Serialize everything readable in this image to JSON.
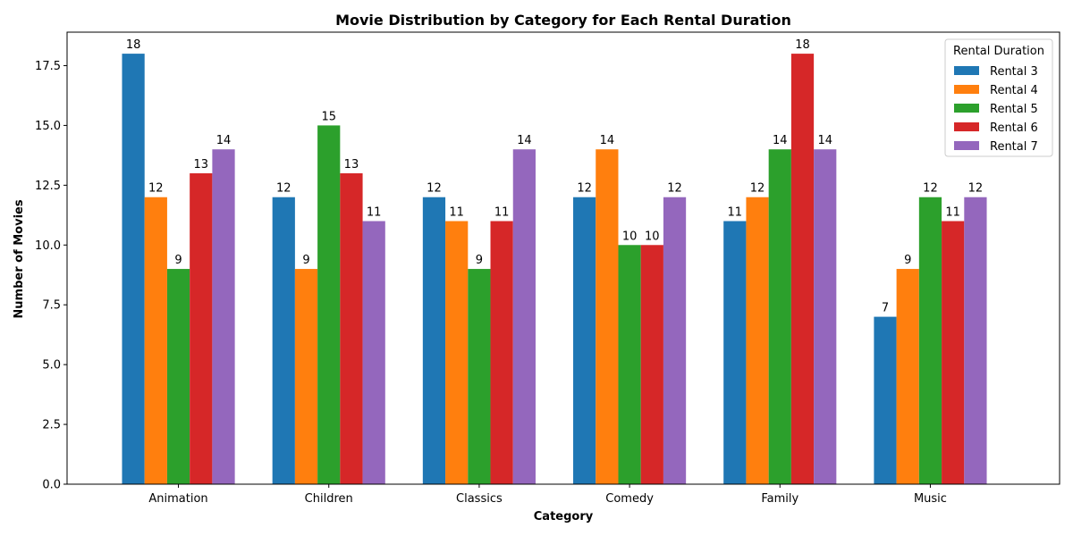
{
  "chart_data": {
    "type": "bar",
    "title": "Movie Distribution by Category for Each Rental Duration",
    "xlabel": "Category",
    "ylabel": "Number of Movies",
    "categories": [
      "Animation",
      "Children",
      "Classics",
      "Comedy",
      "Family",
      "Music"
    ],
    "series": [
      {
        "name": "Rental 3",
        "color": "#1f77b4",
        "values": [
          18,
          12,
          12,
          12,
          11,
          7
        ]
      },
      {
        "name": "Rental 4",
        "color": "#ff7f0e",
        "values": [
          12,
          9,
          11,
          14,
          12,
          9
        ]
      },
      {
        "name": "Rental 5",
        "color": "#2ca02c",
        "values": [
          9,
          15,
          9,
          10,
          14,
          12
        ]
      },
      {
        "name": "Rental 6",
        "color": "#d62728",
        "values": [
          13,
          13,
          11,
          10,
          18,
          11
        ]
      },
      {
        "name": "Rental 7",
        "color": "#9467bd",
        "values": [
          14,
          11,
          14,
          12,
          14,
          12
        ]
      }
    ],
    "yticks": [
      "0.0",
      "2.5",
      "5.0",
      "7.5",
      "10.0",
      "12.5",
      "15.0",
      "17.5"
    ],
    "ylim": [
      0,
      18.9
    ],
    "grid": false,
    "legend": {
      "title": "Rental Duration",
      "placement": "top-right"
    }
  }
}
